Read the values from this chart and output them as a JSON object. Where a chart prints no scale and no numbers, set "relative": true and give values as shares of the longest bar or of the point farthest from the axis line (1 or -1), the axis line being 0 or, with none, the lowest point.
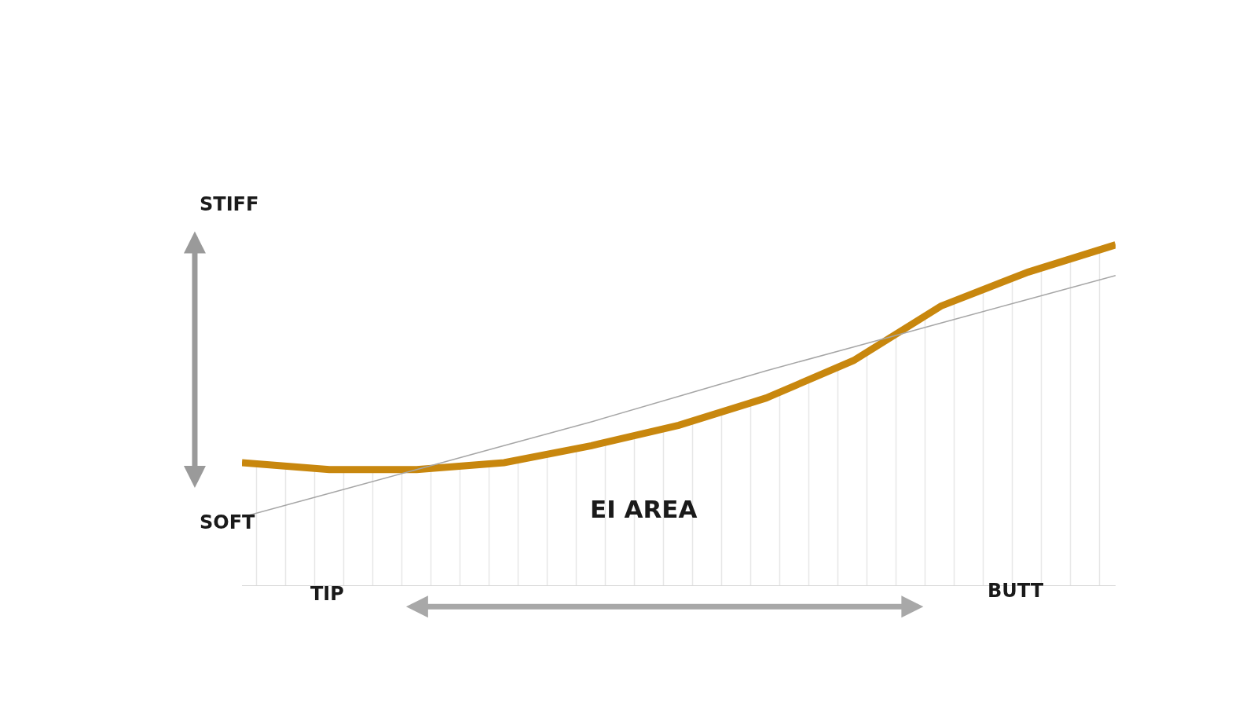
{
  "chart_data": {
    "type": "line",
    "relative": true,
    "categories": [
      null,
      null,
      null,
      null,
      null,
      null,
      null,
      null,
      null,
      null,
      null
    ],
    "series": [
      {
        "type": "area",
        "color": "#c8870e",
        "values": [
          0.36,
          0.34,
          0.34,
          0.36,
          0.41,
          0.47,
          0.55,
          0.66,
          0.82,
          0.92,
          1.0
        ]
      },
      {
        "color": "#a6a6a6",
        "values": [
          0.2,
          0.27,
          0.34,
          0.41,
          0.48,
          0.555,
          0.63,
          0.7,
          0.77,
          0.84,
          0.91
        ]
      }
    ],
    "annotations": [
      "STIFF",
      "SOFT",
      "TIP",
      "BUTT",
      "EI AREA"
    ]
  }
}
